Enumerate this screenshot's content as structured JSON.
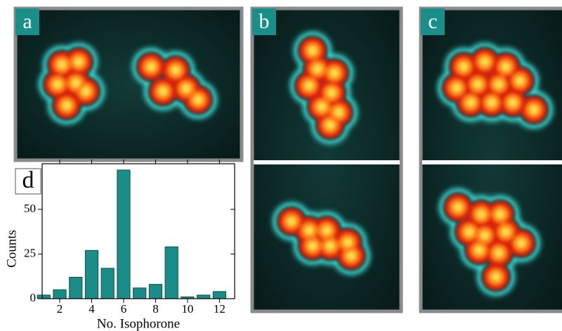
{
  "panel_labels": [
    "a",
    "b",
    "c",
    "d"
  ],
  "chart_data": {
    "type": "bar",
    "x_label": "No. Isophorone",
    "y_label": "Counts",
    "x": [
      1,
      2,
      3,
      4,
      5,
      6,
      7,
      8,
      9,
      10,
      11,
      12
    ],
    "values": [
      2,
      5,
      12,
      27,
      17,
      72,
      6,
      8,
      29,
      1,
      2,
      4
    ],
    "color": "#1b8c88",
    "xlim": [
      0.9,
      12.95
    ],
    "xticks": [
      2,
      4,
      6,
      8,
      10,
      12
    ],
    "ylim": [
      0,
      75.5
    ],
    "yticks": [
      0,
      25,
      50
    ]
  }
}
